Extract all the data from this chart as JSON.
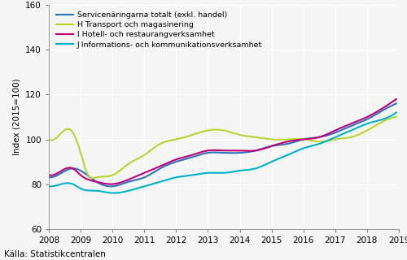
{
  "title": "",
  "ylabel": "Index (2015=100)",
  "source": "Källa: Statistikcentralen",
  "ylim": [
    60,
    160
  ],
  "yticks": [
    60,
    80,
    100,
    120,
    140,
    160
  ],
  "xlim": [
    2008.0,
    2019.0
  ],
  "xticks": [
    2008,
    2009,
    2010,
    2011,
    2012,
    2013,
    2014,
    2015,
    2016,
    2017,
    2018,
    2019
  ],
  "legend_entries": [
    "Servicenäringarna totalt (exkl. handel)",
    "H Transport och magasinering",
    "I Hotell- och restaurangverksamhet",
    "J Informations- och kommunikationsverksamhet"
  ],
  "colors": [
    "#2e75b6",
    "#bdd231",
    "#c00078",
    "#00b0c8"
  ],
  "linewidth": 1.5,
  "background_color": "#f0f0f0",
  "total_x": [
    2008.0,
    2008.4,
    2008.75,
    2009.0,
    2009.5,
    2010.0,
    2010.5,
    2011.0,
    2011.5,
    2012.0,
    2012.5,
    2013.0,
    2013.5,
    2014.0,
    2014.5,
    2015.0,
    2015.5,
    2016.0,
    2016.5,
    2017.0,
    2017.5,
    2018.0,
    2018.5,
    2018.917
  ],
  "total_y": [
    83,
    85,
    87,
    86,
    81,
    79,
    81,
    83,
    87,
    90,
    92,
    94,
    94,
    94,
    95,
    97,
    98,
    100,
    101,
    103,
    106,
    109,
    113,
    116
  ],
  "transport_x": [
    2008.0,
    2008.4,
    2008.7,
    2009.0,
    2009.2,
    2009.5,
    2010.0,
    2010.5,
    2011.0,
    2011.5,
    2012.0,
    2012.5,
    2013.0,
    2013.5,
    2014.0,
    2014.5,
    2015.0,
    2015.5,
    2016.0,
    2016.5,
    2017.0,
    2017.5,
    2018.0,
    2018.5,
    2018.917
  ],
  "transport_y": [
    100,
    103,
    104,
    94,
    85,
    83,
    84,
    89,
    93,
    98,
    100,
    102,
    104,
    104,
    102,
    101,
    100,
    100,
    100,
    99,
    100,
    101,
    104,
    108,
    110
  ],
  "hotell_x": [
    2008.0,
    2008.4,
    2008.75,
    2009.0,
    2009.5,
    2010.0,
    2010.5,
    2011.0,
    2011.5,
    2012.0,
    2012.5,
    2013.0,
    2013.5,
    2014.0,
    2014.5,
    2015.0,
    2015.5,
    2016.0,
    2016.5,
    2017.0,
    2017.5,
    2018.0,
    2018.5,
    2018.917
  ],
  "hotell_y": [
    84,
    86,
    87,
    84,
    81,
    80,
    82,
    85,
    88,
    91,
    93,
    95,
    95,
    95,
    95,
    97,
    99,
    100,
    101,
    104,
    107,
    110,
    114,
    118
  ],
  "ikt_x": [
    2008.0,
    2008.4,
    2008.75,
    2009.0,
    2009.5,
    2010.0,
    2010.5,
    2011.0,
    2011.5,
    2012.0,
    2012.5,
    2013.0,
    2013.5,
    2014.0,
    2014.5,
    2015.0,
    2015.5,
    2016.0,
    2016.5,
    2017.0,
    2017.5,
    2018.0,
    2018.5,
    2018.917
  ],
  "ikt_y": [
    79,
    80,
    80,
    78,
    77,
    76,
    77,
    79,
    81,
    83,
    84,
    85,
    85,
    86,
    87,
    90,
    93,
    96,
    98,
    101,
    104,
    107,
    109,
    112
  ]
}
